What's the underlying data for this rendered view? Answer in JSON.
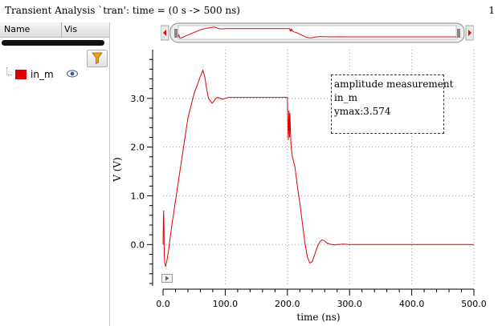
{
  "header": {
    "title": "Transient Analysis `tran': time = (0 s -> 500 ns)",
    "page_number": "1"
  },
  "signal_panel": {
    "col_name": "Name",
    "col_vis": "Vis",
    "signals": [
      {
        "name": "in_m",
        "color": "#e00000",
        "icon": "eye-icon"
      }
    ],
    "filter_icon": "filter-icon"
  },
  "measurement": {
    "title": "amplitude measurement",
    "signal": "in_m",
    "value": "ymax:3.574"
  },
  "chart_data": {
    "type": "line",
    "xlabel": "time (ns)",
    "ylabel": "V (V)",
    "xlim": [
      0,
      500
    ],
    "ylim": [
      -0.85,
      4.0
    ],
    "x_ticks": [
      "0.0",
      "100.0",
      "200.0",
      "300.0",
      "400.0",
      "500.0"
    ],
    "y_ticks": [
      "0.0",
      "1.0",
      "2.0",
      "3.0"
    ],
    "grid": true,
    "series": [
      {
        "name": "in_m",
        "color": "#e00000",
        "x": [
          0,
          0.5,
          1,
          1.5,
          2,
          3,
          4,
          6,
          9,
          13,
          20,
          30,
          40,
          50,
          60,
          64,
          67,
          70,
          73,
          76,
          79,
          82,
          85,
          88,
          92,
          96,
          100,
          105,
          110,
          120,
          140,
          160,
          180,
          200,
          200.5,
          201,
          201.5,
          202,
          202.5,
          203,
          203.5,
          204,
          205,
          206,
          208,
          212,
          216,
          220,
          224,
          228,
          232,
          236,
          240,
          244,
          248,
          252,
          256,
          260,
          264,
          268,
          272,
          276,
          280,
          290,
          300,
          320,
          350,
          400,
          450,
          500
        ],
        "y": [
          0.0,
          0.5,
          0.7,
          0.3,
          -0.2,
          -0.4,
          -0.45,
          -0.35,
          -0.1,
          0.3,
          0.9,
          1.75,
          2.6,
          3.1,
          3.45,
          3.574,
          3.45,
          3.2,
          3.0,
          2.95,
          2.9,
          2.95,
          3.0,
          3.02,
          3.0,
          2.98,
          3.0,
          3.02,
          3.02,
          3.02,
          3.02,
          3.02,
          3.02,
          3.02,
          2.6,
          2.3,
          2.15,
          2.5,
          2.75,
          2.4,
          2.2,
          2.7,
          2.3,
          2.0,
          1.8,
          1.6,
          1.2,
          0.85,
          0.45,
          0.05,
          -0.25,
          -0.38,
          -0.35,
          -0.2,
          -0.05,
          0.05,
          0.1,
          0.07,
          0.03,
          0.01,
          0.0,
          -0.01,
          0.0,
          0.01,
          0.0,
          0.0,
          0.0,
          0.0,
          0.0,
          0.0
        ]
      }
    ]
  }
}
